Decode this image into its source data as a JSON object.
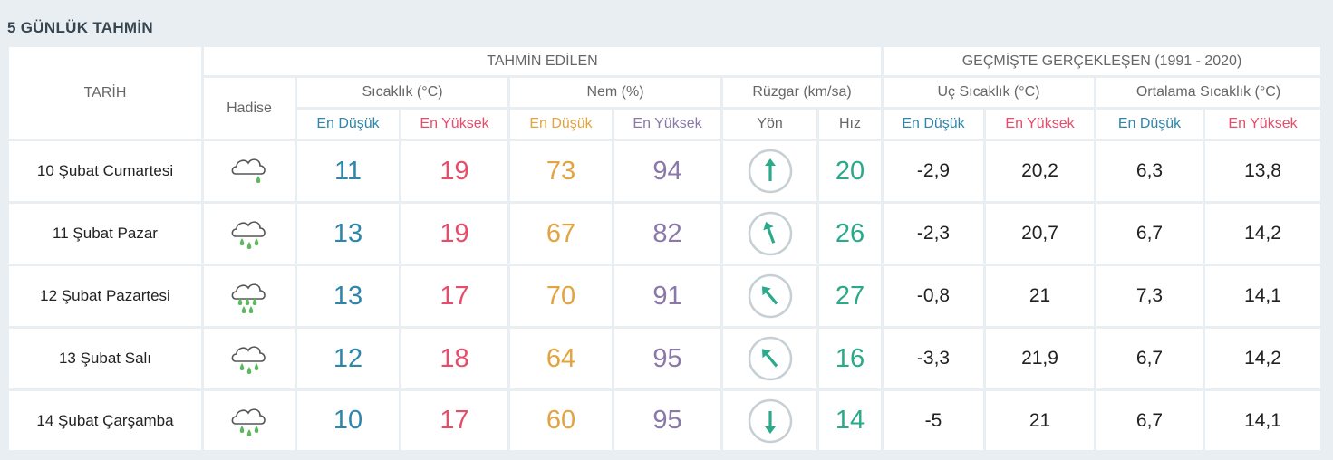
{
  "title": "5 GÜNLÜK TAHMİN",
  "headers": {
    "date": "TARİH",
    "forecast": "TAHMİN EDİLEN",
    "history": "GEÇMİŞTE GERÇEKLEŞEN (1991 - 2020)",
    "event": "Hadise",
    "temp": "Sıcaklık (°C)",
    "humidity": "Nem (%)",
    "wind": "Rüzgar (km/sa)",
    "extreme_temp": "Uç Sıcaklık (°C)",
    "avg_temp": "Ortalama Sıcaklık (°C)",
    "min": "En Düşük",
    "max": "En Yüksek",
    "direction": "Yön",
    "speed": "Hız"
  },
  "rows": [
    {
      "date": "10 Şubat Cumartesi",
      "icon": "light-rain-cloud-icon",
      "drops": 1,
      "temp_min": "11",
      "temp_max": "19",
      "hum_min": "73",
      "hum_max": "94",
      "wind_dir_deg": 0,
      "wind_speed": "20",
      "ext_min": "-2,9",
      "ext_max": "20,2",
      "avg_min": "6,3",
      "avg_max": "13,8"
    },
    {
      "date": "11 Şubat Pazar",
      "icon": "rain-cloud-icon",
      "drops": 3,
      "temp_min": "13",
      "temp_max": "19",
      "hum_min": "67",
      "hum_max": "82",
      "wind_dir_deg": -20,
      "wind_speed": "26",
      "ext_min": "-2,3",
      "ext_max": "20,7",
      "avg_min": "6,7",
      "avg_max": "14,2"
    },
    {
      "date": "12 Şubat Pazartesi",
      "icon": "heavy-rain-cloud-icon",
      "drops": 5,
      "temp_min": "13",
      "temp_max": "17",
      "hum_min": "70",
      "hum_max": "91",
      "wind_dir_deg": -40,
      "wind_speed": "27",
      "ext_min": "-0,8",
      "ext_max": "21",
      "avg_min": "7,3",
      "avg_max": "14,1"
    },
    {
      "date": "13 Şubat Salı",
      "icon": "rain-cloud-icon",
      "drops": 3,
      "temp_min": "12",
      "temp_max": "18",
      "hum_min": "64",
      "hum_max": "95",
      "wind_dir_deg": -40,
      "wind_speed": "16",
      "ext_min": "-3,3",
      "ext_max": "21,9",
      "avg_min": "6,7",
      "avg_max": "14,2"
    },
    {
      "date": "14 Şubat Çarşamba",
      "icon": "rain-cloud-icon",
      "drops": 3,
      "temp_min": "10",
      "temp_max": "17",
      "hum_min": "60",
      "hum_max": "95",
      "wind_dir_deg": 180,
      "wind_speed": "14",
      "ext_min": "-5",
      "ext_max": "21",
      "avg_min": "6,7",
      "avg_max": "14,1"
    }
  ],
  "colors": {
    "min": "#2e86ab",
    "max": "#e84c6a",
    "humidity_min": "#e3a33e",
    "humidity_max": "#8a78a8",
    "wind": "#2aaa8a"
  }
}
